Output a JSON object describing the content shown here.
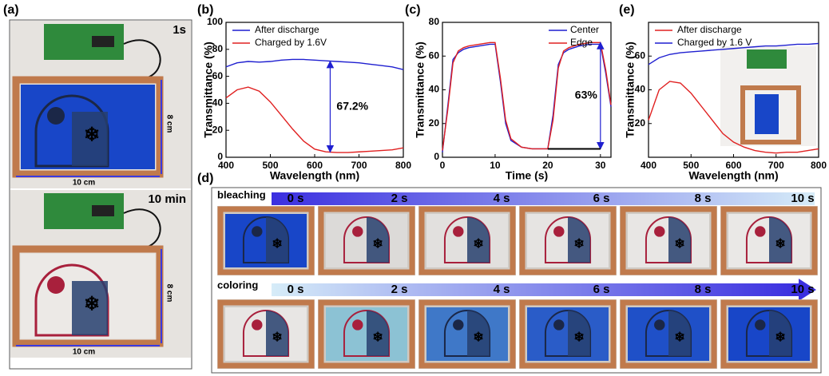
{
  "chart_data": [
    {
      "type": "line",
      "label": "(b)",
      "xlabel": "Wavelength (nm)",
      "ylabel": "Transmittance (%)",
      "x": [
        400,
        425,
        450,
        475,
        500,
        525,
        550,
        575,
        600,
        625,
        650,
        675,
        700,
        725,
        750,
        775,
        800
      ],
      "series": [
        {
          "name": "After discharge",
          "color": "#1f1fd0",
          "values": [
            67,
            70,
            71,
            70.5,
            71,
            72,
            72.5,
            72.5,
            72,
            71.5,
            71,
            70.5,
            70,
            69,
            68,
            67,
            65
          ]
        },
        {
          "name": "Charged by 1.6V",
          "color": "#e02020",
          "values": [
            44,
            50,
            52,
            49,
            41,
            31,
            21,
            12,
            6,
            4,
            3.5,
            3.5,
            4,
            4.5,
            5,
            5.5,
            7
          ]
        }
      ],
      "xlim": [
        400,
        800
      ],
      "xticks": [
        400,
        500,
        600,
        700,
        800
      ],
      "ylim": [
        0,
        100
      ],
      "yticks": [
        0,
        20,
        40,
        60,
        80,
        100
      ],
      "legend": "upper left",
      "annotation": {
        "text": "67.2%",
        "x": 635,
        "y": [
          4,
          71
        ],
        "color": "#1f1fd0"
      }
    },
    {
      "type": "line",
      "label": "(c)",
      "xlabel": "Time (s)",
      "ylabel": "Transmittance (%)",
      "x": [
        0,
        1,
        2,
        3,
        4,
        5,
        7,
        9,
        10,
        11,
        12,
        13,
        15,
        17,
        19,
        20,
        21,
        22,
        23,
        24,
        26,
        28,
        30,
        31,
        32
      ],
      "series": [
        {
          "name": "Center",
          "color": "#1f1fd0",
          "values": [
            3,
            30,
            58,
            62,
            64,
            65,
            66,
            67,
            67,
            45,
            20,
            10,
            6,
            5,
            5,
            5,
            25,
            55,
            62,
            64,
            66,
            67,
            67,
            50,
            30
          ]
        },
        {
          "name": "Edge",
          "color": "#e02020",
          "values": [
            4,
            28,
            56,
            63,
            65,
            66,
            67,
            68,
            68,
            47,
            22,
            11,
            6,
            5,
            5,
            5,
            22,
            53,
            63,
            65,
            67,
            68,
            68,
            52,
            31
          ]
        }
      ],
      "xlim": [
        0,
        32
      ],
      "xticks": [
        0,
        10,
        20,
        30
      ],
      "ylim": [
        0,
        80
      ],
      "yticks": [
        0,
        20,
        40,
        60,
        80
      ],
      "legend": "upper right",
      "annotation": {
        "text": "63%",
        "x": 30,
        "y": [
          5,
          68
        ],
        "color": "#1f1fd0",
        "base_x": [
          20,
          30
        ]
      }
    },
    {
      "type": "line",
      "label": "(e)",
      "xlabel": "Wavelength (nm)",
      "ylabel": "Transmittance (%)",
      "x": [
        400,
        425,
        450,
        475,
        500,
        525,
        550,
        575,
        600,
        625,
        650,
        675,
        700,
        725,
        750,
        775,
        800
      ],
      "series": [
        {
          "name": "After discharge",
          "color": "#e02020",
          "values": [
            22,
            40,
            45,
            44,
            38,
            30,
            22,
            14,
            9,
            6,
            4,
            3,
            2.5,
            3,
            3,
            4,
            5
          ]
        },
        {
          "name": "Charged by 1.6 V",
          "color": "#1f1fd0",
          "values": [
            55,
            59,
            61,
            62,
            62.5,
            63,
            63.5,
            64,
            64.5,
            65,
            65.5,
            66,
            66,
            66.5,
            67,
            67,
            67.5
          ]
        }
      ],
      "xlim": [
        400,
        800
      ],
      "xticks": [
        400,
        500,
        600,
        700,
        800
      ],
      "ylim": [
        0,
        80
      ],
      "yticks": [
        20,
        40,
        60
      ],
      "legend": "upper left"
    }
  ],
  "panel_a": {
    "label": "(a)",
    "photos": [
      {
        "time": "1s",
        "height": "8 cm",
        "width": "10 cm"
      },
      {
        "time": "10 min",
        "height": "8 cm",
        "width": "10 cm"
      }
    ]
  },
  "panel_d": {
    "label": "(d)",
    "rows": [
      {
        "name": "bleaching",
        "times": [
          "0 s",
          "2 s",
          "4 s",
          "6 s",
          "8 s",
          "10 s"
        ]
      },
      {
        "name": "coloring",
        "times": [
          "0 s",
          "2 s",
          "4 s",
          "6 s",
          "8 s",
          "10 s"
        ]
      }
    ]
  }
}
